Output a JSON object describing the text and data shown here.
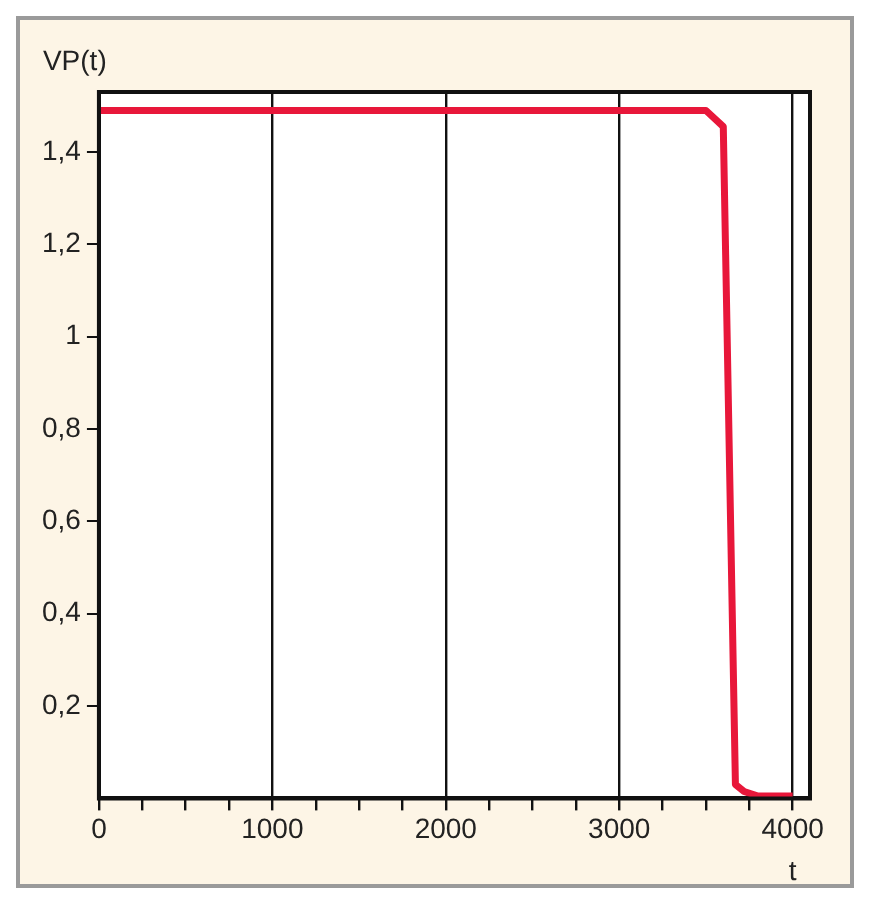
{
  "chart_data": {
    "type": "line",
    "xlabel": "t",
    "ylabel": "VP(t)",
    "x": [
      0,
      3500,
      3600,
      3670,
      3720,
      3800,
      4000
    ],
    "series": [
      {
        "color": "#e8173a",
        "values": [
          1.49,
          1.49,
          1.455,
          0.03,
          0.015,
          0.005,
          0.005
        ]
      }
    ],
    "xlim": [
      0,
      4100
    ],
    "xticks": [
      0,
      {
        "value": 250,
        "label": null
      },
      {
        "value": 500,
        "label": null
      },
      {
        "value": 750,
        "label": null
      },
      1000,
      {
        "value": 1250,
        "label": null
      },
      {
        "value": 1500,
        "label": null
      },
      {
        "value": 1750,
        "label": null
      },
      2000,
      {
        "value": 2250,
        "label": null
      },
      {
        "value": 2500,
        "label": null
      },
      {
        "value": 2750,
        "label": null
      },
      3000,
      {
        "value": 3250,
        "label": null
      },
      {
        "value": 3500,
        "label": null
      },
      {
        "value": 3750,
        "label": null
      },
      4000
    ],
    "ylim": [
      0,
      1.53
    ],
    "yticks": [
      {
        "value": 0.2,
        "label": "0,2"
      },
      {
        "value": 0.4,
        "label": "0,4"
      },
      {
        "value": 0.6,
        "label": "0,6"
      },
      {
        "value": 0.8,
        "label": "0,8"
      },
      {
        "value": 1,
        "label": "1"
      },
      {
        "value": 1.2,
        "label": "1,2"
      },
      {
        "value": 1.4,
        "label": "1,4"
      }
    ],
    "grid": "x",
    "legend": false,
    "marker": "none",
    "line_style": "solid"
  }
}
